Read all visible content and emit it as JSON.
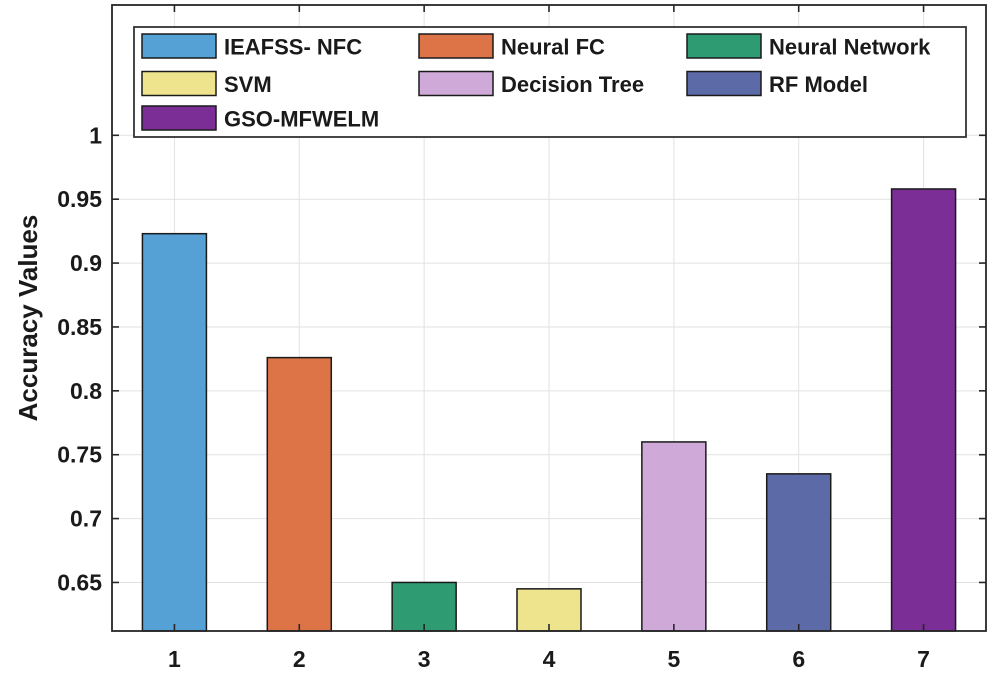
{
  "figure": {
    "background": "#ffffff",
    "axis_color": "#262626",
    "grid_color": "#e2e2e2",
    "text_color": "#1a1a1a"
  },
  "chart_data": {
    "type": "bar",
    "title": "",
    "xlabel": "",
    "ylabel": "Accuracy Values",
    "categories": [
      "1",
      "2",
      "3",
      "4",
      "5",
      "6",
      "7"
    ],
    "values": [
      0.923,
      0.826,
      0.65,
      0.645,
      0.76,
      0.735,
      0.958
    ],
    "bar_colors": [
      "#55a0d5",
      "#dc7447",
      "#2e9b72",
      "#eee48e",
      "#cfaad8",
      "#5c6ba8",
      "#7a2e96"
    ],
    "bar_edge_color": "#1a1a1a",
    "y_ticks": [
      0.65,
      0.7,
      0.75,
      0.8,
      0.85,
      0.9,
      0.95,
      1
    ],
    "y_tick_labels": [
      "0.65",
      "0.7",
      "0.75",
      "0.8",
      "0.85",
      "0.9",
      "0.95",
      "1"
    ],
    "ylim": [
      0.612,
      1.102
    ],
    "grid": true,
    "legend": {
      "position": "top-inside",
      "columns": 3,
      "entries": [
        {
          "label": "IEAFSS- NFC",
          "color": "#55a0d5"
        },
        {
          "label": "Neural FC",
          "color": "#dc7447"
        },
        {
          "label": "Neural Network",
          "color": "#2e9b72"
        },
        {
          "label": "SVM",
          "color": "#eee48e"
        },
        {
          "label": "Decision Tree",
          "color": "#cfaad8"
        },
        {
          "label": "RF Model",
          "color": "#5c6ba8"
        },
        {
          "label": "GSO-MFWELM",
          "color": "#7a2e96"
        }
      ]
    }
  }
}
